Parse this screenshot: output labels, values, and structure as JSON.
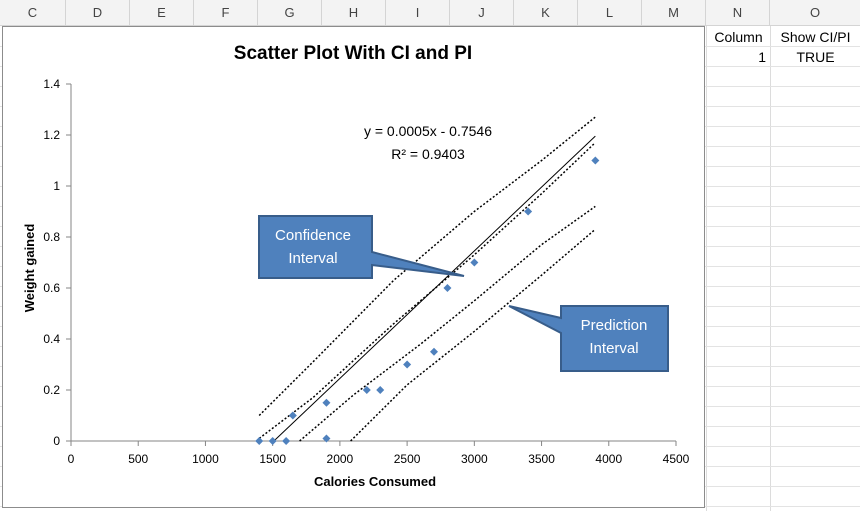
{
  "spreadsheet": {
    "column_headers": [
      "C",
      "D",
      "E",
      "F",
      "G",
      "H",
      "I",
      "J",
      "K",
      "L",
      "M",
      "N",
      "O"
    ],
    "cells": {
      "n1": "Column",
      "o1": "Show CI/PI",
      "n2": "1",
      "o2": "TRUE"
    }
  },
  "colors": {
    "marker": "#4f81bd",
    "callout_fill": "#4f81bd",
    "callout_stroke": "#385d8a",
    "callout_text": "#ffffff"
  },
  "chart_data": {
    "type": "scatter",
    "title": "Scatter Plot With CI and PI",
    "xlabel": "Calories Consumed",
    "ylabel": "Weight gained",
    "xlim": [
      0,
      4500
    ],
    "ylim": [
      0,
      1.4
    ],
    "x_ticks": [
      "0",
      "500",
      "1000",
      "1500",
      "2000",
      "2500",
      "3000",
      "3500",
      "4000",
      "4500"
    ],
    "y_ticks": [
      "0",
      "0.2",
      "0.4",
      "0.6",
      "0.8",
      "1",
      "1.2",
      "1.4"
    ],
    "x_tick_values": [
      0,
      500,
      1000,
      1500,
      2000,
      2500,
      3000,
      3500,
      4000,
      4500
    ],
    "y_tick_values": [
      0,
      0.2,
      0.4,
      0.6,
      0.8,
      1.0,
      1.2,
      1.4
    ],
    "grid": false,
    "points": {
      "x": [
        1400,
        1500,
        1600,
        1650,
        1900,
        1900,
        2200,
        2300,
        2500,
        2700,
        2800,
        3000,
        3400,
        3900
      ],
      "y": [
        0.0,
        0.0,
        0.0,
        0.1,
        0.15,
        0.01,
        0.2,
        0.2,
        0.3,
        0.35,
        0.6,
        0.7,
        0.9,
        1.1
      ]
    },
    "trendline": {
      "slope": 0.0005,
      "intercept": -0.7546,
      "x_start": 1510,
      "x_end": 3900
    },
    "ci_upper": {
      "x": [
        1400,
        1800,
        2400,
        3000,
        3500,
        3900
      ],
      "y": [
        0.01,
        0.17,
        0.46,
        0.73,
        0.97,
        1.17
      ]
    },
    "ci_lower": {
      "x": [
        1700,
        2100,
        2600,
        3000,
        3500,
        3900
      ],
      "y": [
        0.0,
        0.18,
        0.38,
        0.55,
        0.77,
        0.92
      ]
    },
    "pi_upper": {
      "x": [
        1400,
        1800,
        2400,
        3000,
        3500,
        3900
      ],
      "y": [
        0.1,
        0.31,
        0.63,
        0.9,
        1.1,
        1.27
      ]
    },
    "pi_lower": {
      "x": [
        2080,
        2500,
        3000,
        3500,
        3900
      ],
      "y": [
        0.0,
        0.22,
        0.43,
        0.65,
        0.83
      ]
    },
    "equation_line1": "y = 0.0005x - 0.7546",
    "equation_line2": "R² = 0.9403",
    "callouts": [
      {
        "name": "confidence-interval-callout",
        "line1": "Confidence",
        "line2": "Interval"
      },
      {
        "name": "prediction-interval-callout",
        "line1": "Prediction",
        "line2": "Interval"
      }
    ]
  }
}
